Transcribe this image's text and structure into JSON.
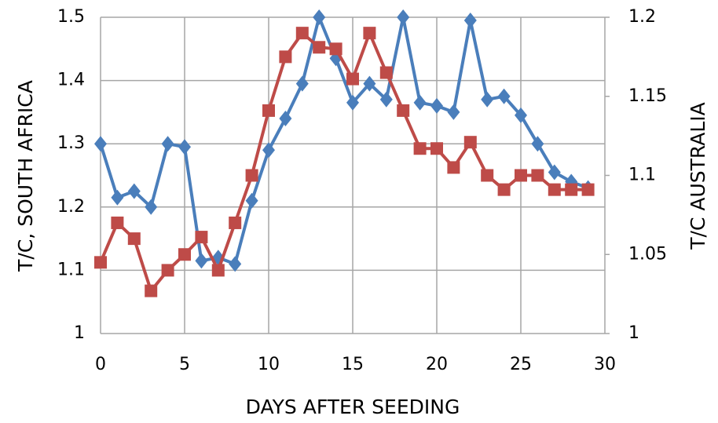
{
  "chart_data": {
    "type": "line",
    "xlabel": "DAYS AFTER SEEDING",
    "ylabel": "T/C, SOUTH AFRICA",
    "y2label": "T/C AUSTRALIA",
    "x": [
      0,
      1,
      2,
      3,
      4,
      5,
      6,
      7,
      8,
      9,
      10,
      11,
      12,
      13,
      14,
      15,
      16,
      17,
      18,
      19,
      20,
      21,
      22,
      23,
      24,
      25,
      26,
      27,
      28,
      29
    ],
    "series": [
      {
        "color": "#4a7ebb",
        "marker": "diamond",
        "axis": "y",
        "values": [
          1.3,
          1.215,
          1.225,
          1.2,
          1.3,
          1.295,
          1.115,
          1.12,
          1.11,
          1.21,
          1.29,
          1.34,
          1.395,
          1.5,
          1.435,
          1.365,
          1.395,
          1.37,
          1.5,
          1.365,
          1.36,
          1.35,
          1.495,
          1.37,
          1.375,
          1.345,
          1.3,
          1.255,
          1.24,
          1.23
        ]
      },
      {
        "color": "#be4b48",
        "marker": "square",
        "axis": "y2",
        "values": [
          1.045,
          1.07,
          1.06,
          1.027,
          1.04,
          1.05,
          1.061,
          1.04,
          1.07,
          1.1,
          1.141,
          1.175,
          1.19,
          1.181,
          1.18,
          1.161,
          1.19,
          1.165,
          1.141,
          1.117,
          1.117,
          1.105,
          1.121,
          1.1,
          1.091,
          1.1,
          1.1,
          1.091,
          1.091,
          1.091
        ]
      }
    ],
    "xlim": [
      0,
      30
    ],
    "xticks": [
      0,
      5,
      10,
      15,
      20,
      25,
      30
    ],
    "ylim": [
      1,
      1.5
    ],
    "yticks": [
      1,
      1.1,
      1.2,
      1.3,
      1.4,
      1.5
    ],
    "y2lim": [
      1,
      1.2
    ],
    "y2ticks": [
      1,
      1.05,
      1.1,
      1.15,
      1.2
    ],
    "grid": true
  }
}
